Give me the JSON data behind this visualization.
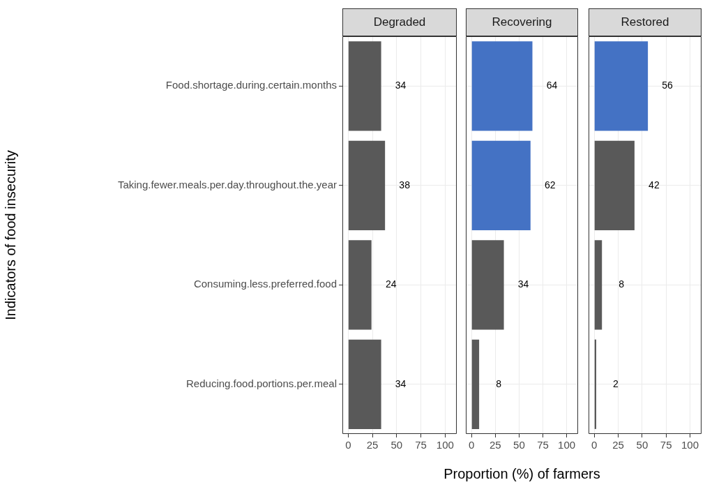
{
  "chart_data": [
    {
      "type": "bar",
      "orientation": "horizontal",
      "title": "Degraded",
      "ylabel": "Indicators of food insecurity",
      "categories": [
        "Food.shortage.during.certain.months",
        "Taking.fewer.meals.per.day.throughout.the.year",
        "Consuming.less.preferred.food",
        "Reducing.food.portions.per.meal"
      ],
      "values": [
        34,
        38,
        24,
        34
      ],
      "colors": [
        "#595959",
        "#595959",
        "#595959",
        "#595959"
      ],
      "xlim": [
        -6,
        112
      ],
      "xticks": [
        0,
        25,
        50,
        75,
        100
      ],
      "grid": true,
      "data_labels": true,
      "legend": false
    },
    {
      "type": "bar",
      "orientation": "horizontal",
      "title": "Recovering",
      "xlabel": "Proportion (%) of farmers",
      "categories": [
        null,
        null,
        null,
        null
      ],
      "values": [
        64,
        62,
        34,
        8
      ],
      "colors": [
        "#4472c4",
        "#4472c4",
        "#595959",
        "#595959"
      ],
      "xlim": [
        -6,
        112
      ],
      "xticks": [
        0,
        25,
        50,
        75,
        100
      ],
      "grid": true,
      "data_labels": true,
      "legend": false,
      "tick_labels": "x"
    },
    {
      "type": "bar",
      "orientation": "horizontal",
      "title": "Restored",
      "categories": [
        null,
        null,
        null,
        null
      ],
      "values": [
        56,
        42,
        8,
        2
      ],
      "colors": [
        "#4472c4",
        "#595959",
        "#595959",
        "#595959"
      ],
      "xlim": [
        -6,
        112
      ],
      "xticks": [
        0,
        25,
        50,
        75,
        100
      ],
      "grid": true,
      "data_labels": true,
      "legend": false,
      "tick_labels": "x"
    }
  ]
}
